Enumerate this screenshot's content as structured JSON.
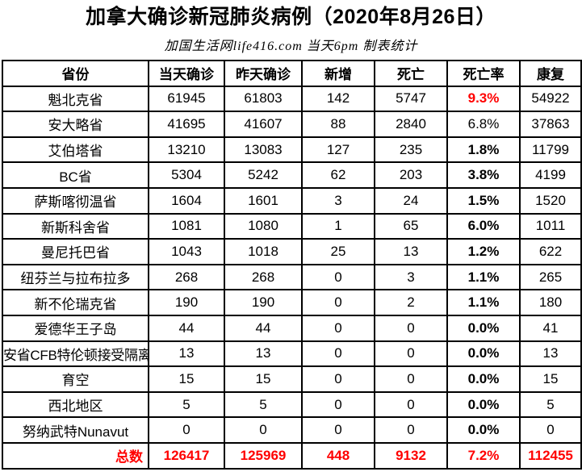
{
  "title": "加拿大确诊新冠肺炎病例（2020年8月26日）",
  "subtitle": "加国生活网life416.com 当天6pm 制表统计",
  "colors": {
    "text": "#000000",
    "highlight_red": "#FF0000",
    "border": "#000000",
    "background": "#FFFFFF"
  },
  "table": {
    "headers": [
      "省份",
      "当天确诊",
      "昨天确诊",
      "新增",
      "死亡",
      "死亡率",
      "康复"
    ],
    "rows": [
      {
        "province": "魁北克省",
        "today": "61945",
        "yesterday": "61803",
        "new": "142",
        "deaths": "5747",
        "death_rate": "9.3%",
        "recovered": "54922",
        "rate_style": "red-bold"
      },
      {
        "province": "安大略省",
        "today": "41695",
        "yesterday": "41607",
        "new": "88",
        "deaths": "2840",
        "death_rate": "6.8%",
        "recovered": "37863",
        "rate_style": "normal"
      },
      {
        "province": "艾伯塔省",
        "today": "13210",
        "yesterday": "13083",
        "new": "127",
        "deaths": "235",
        "death_rate": "1.8%",
        "recovered": "11799",
        "rate_style": "bold"
      },
      {
        "province": "BC省",
        "today": "5304",
        "yesterday": "5242",
        "new": "62",
        "deaths": "203",
        "death_rate": "3.8%",
        "recovered": "4199",
        "rate_style": "bold"
      },
      {
        "province": "萨斯喀彻温省",
        "today": "1604",
        "yesterday": "1601",
        "new": "3",
        "deaths": "24",
        "death_rate": "1.5%",
        "recovered": "1520",
        "rate_style": "bold"
      },
      {
        "province": "新斯科舍省",
        "today": "1081",
        "yesterday": "1080",
        "new": "1",
        "deaths": "65",
        "death_rate": "6.0%",
        "recovered": "1011",
        "rate_style": "bold"
      },
      {
        "province": "曼尼托巴省",
        "today": "1043",
        "yesterday": "1018",
        "new": "25",
        "deaths": "13",
        "death_rate": "1.2%",
        "recovered": "622",
        "rate_style": "bold"
      },
      {
        "province": "纽芬兰与拉布拉多",
        "today": "268",
        "yesterday": "268",
        "new": "0",
        "deaths": "3",
        "death_rate": "1.1%",
        "recovered": "265",
        "rate_style": "bold"
      },
      {
        "province": "新不伦瑞克省",
        "today": "190",
        "yesterday": "190",
        "new": "0",
        "deaths": "2",
        "death_rate": "1.1%",
        "recovered": "180",
        "rate_style": "bold"
      },
      {
        "province": "爱德华王子岛",
        "today": "44",
        "yesterday": "44",
        "new": "0",
        "deaths": "0",
        "death_rate": "0.0%",
        "recovered": "41",
        "rate_style": "bold"
      },
      {
        "province": "安省CFB特伦顿接受隔离",
        "today": "13",
        "yesterday": "13",
        "new": "0",
        "deaths": "0",
        "death_rate": "0.0%",
        "recovered": "13",
        "rate_style": "bold",
        "small_label": true
      },
      {
        "province": "育空",
        "today": "15",
        "yesterday": "15",
        "new": "0",
        "deaths": "0",
        "death_rate": "0.0%",
        "recovered": "15",
        "rate_style": "bold"
      },
      {
        "province": "西北地区",
        "today": "5",
        "yesterday": "5",
        "new": "0",
        "deaths": "0",
        "death_rate": "0.0%",
        "recovered": "5",
        "rate_style": "bold"
      },
      {
        "province": "努纳武特Nunavut",
        "today": "0",
        "yesterday": "0",
        "new": "0",
        "deaths": "0",
        "death_rate": "0.0%",
        "recovered": "0",
        "rate_style": "bold"
      }
    ],
    "total": {
      "label": "总数",
      "today": "126417",
      "yesterday": "125969",
      "new": "448",
      "deaths": "9132",
      "death_rate": "7.2%",
      "recovered": "112455"
    }
  }
}
